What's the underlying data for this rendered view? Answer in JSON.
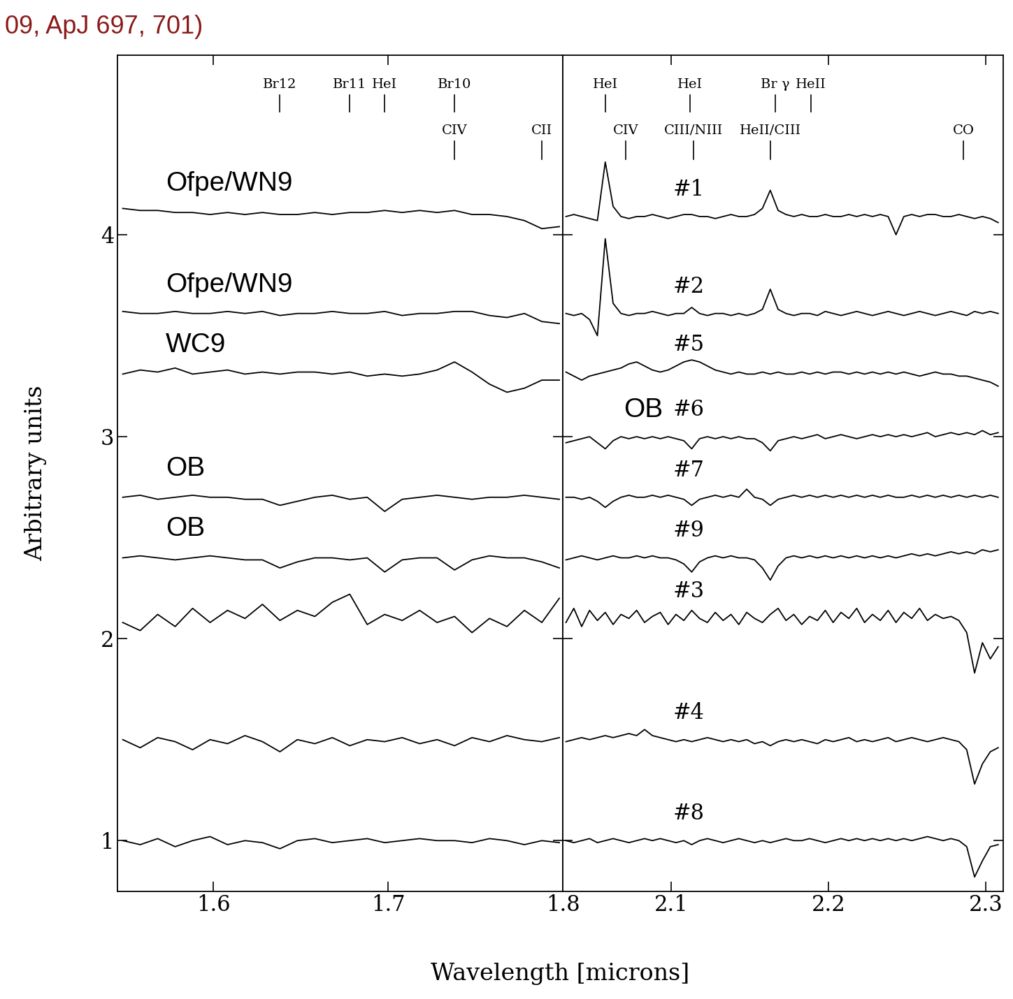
{
  "title": "09, ApJ 697, 701)",
  "xlabel": "Wavelength [microns]",
  "ylabel": "Arbitrary units",
  "chart_data": [
    {
      "type": "line",
      "color": "#000000",
      "xlim": [
        1.545,
        1.8
      ],
      "xticks": [
        1.6,
        1.7,
        1.8
      ],
      "ylim": [
        0.75,
        4.89
      ],
      "yticks": [
        1,
        2,
        3,
        4
      ],
      "upper_lines": [
        {
          "text": "Br12",
          "x": 1.638
        },
        {
          "text": "Br11",
          "x": 1.678
        },
        {
          "text": "HeI",
          "x": 1.698
        },
        {
          "text": "Br10",
          "x": 1.738
        }
      ],
      "lower_lines": [
        {
          "text": "CIV",
          "x": 1.738
        },
        {
          "text": "CII",
          "x": 1.788
        }
      ],
      "x": [
        1.548,
        1.558,
        1.568,
        1.578,
        1.588,
        1.598,
        1.608,
        1.618,
        1.628,
        1.638,
        1.648,
        1.658,
        1.668,
        1.678,
        1.688,
        1.698,
        1.708,
        1.718,
        1.728,
        1.738,
        1.748,
        1.758,
        1.768,
        1.778,
        1.788,
        1.798
      ],
      "series": [
        {
          "name": "Ofpe/WN9",
          "values": [
            4.13,
            4.12,
            4.12,
            4.11,
            4.11,
            4.1,
            4.11,
            4.1,
            4.11,
            4.1,
            4.1,
            4.11,
            4.1,
            4.11,
            4.11,
            4.12,
            4.11,
            4.12,
            4.11,
            4.12,
            4.1,
            4.1,
            4.09,
            4.07,
            4.03,
            4.04
          ]
        },
        {
          "name": "Ofpe/WN9",
          "values": [
            3.62,
            3.61,
            3.61,
            3.62,
            3.61,
            3.61,
            3.62,
            3.61,
            3.62,
            3.6,
            3.61,
            3.61,
            3.62,
            3.61,
            3.61,
            3.62,
            3.6,
            3.61,
            3.61,
            3.62,
            3.62,
            3.6,
            3.59,
            3.61,
            3.57,
            3.56
          ]
        },
        {
          "name": "WC9",
          "values": [
            3.31,
            3.33,
            3.32,
            3.34,
            3.31,
            3.32,
            3.33,
            3.31,
            3.32,
            3.31,
            3.32,
            3.32,
            3.31,
            3.32,
            3.3,
            3.31,
            3.3,
            3.31,
            3.33,
            3.37,
            3.32,
            3.26,
            3.22,
            3.24,
            3.28,
            3.28
          ]
        },
        {
          "name": "OB",
          "values": [
            2.7,
            2.71,
            2.69,
            2.7,
            2.71,
            2.7,
            2.7,
            2.69,
            2.69,
            2.66,
            2.68,
            2.7,
            2.71,
            2.69,
            2.7,
            2.63,
            2.69,
            2.7,
            2.71,
            2.7,
            2.69,
            2.7,
            2.7,
            2.71,
            2.7,
            2.69
          ]
        },
        {
          "name": "OB",
          "values": [
            2.4,
            2.41,
            2.4,
            2.39,
            2.4,
            2.41,
            2.4,
            2.39,
            2.39,
            2.35,
            2.38,
            2.4,
            2.4,
            2.39,
            2.4,
            2.33,
            2.39,
            2.4,
            2.4,
            2.34,
            2.39,
            2.41,
            2.4,
            2.4,
            2.38,
            2.35
          ]
        },
        {
          "values": [
            2.08,
            2.04,
            2.12,
            2.06,
            2.15,
            2.08,
            2.14,
            2.1,
            2.17,
            2.09,
            2.14,
            2.11,
            2.18,
            2.22,
            2.07,
            2.12,
            2.09,
            2.14,
            2.08,
            2.11,
            2.03,
            2.1,
            2.06,
            2.14,
            2.08,
            2.2
          ]
        },
        {
          "values": [
            1.5,
            1.46,
            1.51,
            1.49,
            1.45,
            1.5,
            1.48,
            1.52,
            1.49,
            1.44,
            1.5,
            1.48,
            1.51,
            1.47,
            1.5,
            1.49,
            1.51,
            1.48,
            1.5,
            1.47,
            1.51,
            1.49,
            1.52,
            1.5,
            1.49,
            1.51
          ]
        },
        {
          "values": [
            1.0,
            0.98,
            1.01,
            0.97,
            1.0,
            1.02,
            0.98,
            1.0,
            0.99,
            0.96,
            1.0,
            1.01,
            0.99,
            1.0,
            1.01,
            0.99,
            1.0,
            1.01,
            1.0,
            1.0,
            0.99,
            1.01,
            1.0,
            0.98,
            1.0,
            0.99
          ]
        }
      ]
    },
    {
      "type": "line",
      "color": "#000000",
      "tick_labels": "x",
      "xlim": [
        2.031,
        2.311
      ],
      "xticks": [
        2.1,
        2.2,
        2.3
      ],
      "ylim": [
        0.75,
        4.89
      ],
      "yticks": [
        1,
        2,
        3,
        4
      ],
      "upper_lines": [
        {
          "text": "HeI",
          "x": 2.058
        },
        {
          "text": "HeI",
          "x": 2.112
        },
        {
          "text": "Br γ",
          "x": 2.166
        },
        {
          "text": "HeII",
          "x": 2.189
        }
      ],
      "lower_lines": [
        {
          "text": "CIV",
          "x": 2.071
        },
        {
          "text": "CIII/NIII",
          "x": 2.114
        },
        {
          "text": "HeII/CIII",
          "x": 2.163
        },
        {
          "text": "CO",
          "x": 2.286
        }
      ],
      "annotations": [
        {
          "text": "OB",
          "x": 2.082,
          "y": 3.07
        }
      ],
      "x": [
        2.033,
        2.038,
        2.043,
        2.048,
        2.053,
        2.058,
        2.063,
        2.068,
        2.073,
        2.078,
        2.083,
        2.088,
        2.093,
        2.098,
        2.103,
        2.108,
        2.113,
        2.118,
        2.123,
        2.128,
        2.133,
        2.138,
        2.143,
        2.148,
        2.153,
        2.158,
        2.163,
        2.168,
        2.173,
        2.178,
        2.183,
        2.188,
        2.193,
        2.198,
        2.203,
        2.208,
        2.213,
        2.218,
        2.223,
        2.228,
        2.233,
        2.238,
        2.243,
        2.248,
        2.253,
        2.258,
        2.263,
        2.268,
        2.273,
        2.278,
        2.283,
        2.288,
        2.293,
        2.298,
        2.303,
        2.308
      ],
      "series": [
        {
          "name": "#1",
          "values": [
            4.09,
            4.1,
            4.09,
            4.08,
            4.07,
            4.36,
            4.14,
            4.09,
            4.08,
            4.09,
            4.09,
            4.1,
            4.09,
            4.08,
            4.09,
            4.1,
            4.1,
            4.09,
            4.09,
            4.08,
            4.09,
            4.1,
            4.09,
            4.09,
            4.1,
            4.13,
            4.22,
            4.12,
            4.1,
            4.09,
            4.1,
            4.09,
            4.09,
            4.1,
            4.09,
            4.09,
            4.1,
            4.09,
            4.1,
            4.09,
            4.1,
            4.09,
            4.0,
            4.09,
            4.1,
            4.09,
            4.1,
            4.1,
            4.09,
            4.09,
            4.1,
            4.09,
            4.08,
            4.09,
            4.08,
            4.06
          ]
        },
        {
          "name": "#2",
          "values": [
            3.61,
            3.6,
            3.61,
            3.58,
            3.5,
            3.98,
            3.66,
            3.61,
            3.6,
            3.61,
            3.61,
            3.62,
            3.61,
            3.6,
            3.61,
            3.61,
            3.64,
            3.61,
            3.6,
            3.61,
            3.61,
            3.6,
            3.61,
            3.6,
            3.61,
            3.63,
            3.73,
            3.63,
            3.61,
            3.6,
            3.61,
            3.61,
            3.6,
            3.62,
            3.61,
            3.6,
            3.61,
            3.62,
            3.61,
            3.6,
            3.61,
            3.62,
            3.61,
            3.6,
            3.61,
            3.62,
            3.61,
            3.6,
            3.61,
            3.62,
            3.61,
            3.6,
            3.62,
            3.61,
            3.62,
            3.61
          ]
        },
        {
          "name": "#5",
          "values": [
            3.32,
            3.3,
            3.28,
            3.3,
            3.31,
            3.32,
            3.33,
            3.34,
            3.36,
            3.37,
            3.35,
            3.33,
            3.32,
            3.33,
            3.35,
            3.37,
            3.38,
            3.37,
            3.35,
            3.33,
            3.32,
            3.31,
            3.32,
            3.31,
            3.31,
            3.32,
            3.31,
            3.32,
            3.31,
            3.31,
            3.32,
            3.31,
            3.32,
            3.31,
            3.32,
            3.32,
            3.31,
            3.32,
            3.31,
            3.32,
            3.31,
            3.32,
            3.31,
            3.32,
            3.31,
            3.3,
            3.31,
            3.32,
            3.31,
            3.31,
            3.3,
            3.3,
            3.29,
            3.28,
            3.27,
            3.25
          ]
        },
        {
          "name": "#6",
          "values": [
            2.97,
            2.98,
            2.99,
            3.0,
            2.97,
            2.94,
            2.98,
            3.0,
            2.99,
            3.0,
            2.99,
            3.0,
            2.99,
            3.0,
            2.99,
            2.98,
            2.94,
            2.99,
            3.0,
            2.99,
            3.0,
            2.99,
            3.0,
            2.99,
            2.99,
            2.97,
            2.93,
            2.98,
            2.99,
            3.0,
            2.99,
            3.0,
            3.01,
            2.99,
            3.0,
            3.01,
            3.0,
            2.99,
            3.0,
            3.01,
            3.0,
            3.01,
            3.0,
            3.01,
            3.0,
            3.01,
            3.02,
            3.0,
            3.01,
            3.02,
            3.01,
            3.02,
            3.01,
            3.03,
            3.01,
            3.02
          ]
        },
        {
          "name": "#7",
          "values": [
            2.7,
            2.7,
            2.69,
            2.7,
            2.68,
            2.65,
            2.68,
            2.7,
            2.71,
            2.7,
            2.7,
            2.71,
            2.7,
            2.71,
            2.7,
            2.69,
            2.66,
            2.69,
            2.7,
            2.71,
            2.7,
            2.71,
            2.7,
            2.74,
            2.7,
            2.69,
            2.66,
            2.69,
            2.7,
            2.71,
            2.7,
            2.71,
            2.7,
            2.71,
            2.7,
            2.71,
            2.7,
            2.71,
            2.7,
            2.71,
            2.7,
            2.71,
            2.7,
            2.7,
            2.71,
            2.7,
            2.71,
            2.7,
            2.71,
            2.7,
            2.71,
            2.7,
            2.71,
            2.7,
            2.71,
            2.7
          ]
        },
        {
          "name": "#9",
          "values": [
            2.39,
            2.4,
            2.41,
            2.4,
            2.39,
            2.4,
            2.41,
            2.4,
            2.4,
            2.41,
            2.4,
            2.41,
            2.4,
            2.4,
            2.39,
            2.37,
            2.33,
            2.38,
            2.4,
            2.41,
            2.4,
            2.41,
            2.4,
            2.4,
            2.39,
            2.35,
            2.29,
            2.36,
            2.4,
            2.41,
            2.4,
            2.41,
            2.4,
            2.41,
            2.4,
            2.41,
            2.4,
            2.41,
            2.4,
            2.41,
            2.4,
            2.41,
            2.4,
            2.41,
            2.42,
            2.41,
            2.42,
            2.41,
            2.42,
            2.43,
            2.42,
            2.43,
            2.42,
            2.44,
            2.43,
            2.44
          ]
        },
        {
          "name": "#3",
          "values": [
            2.08,
            2.15,
            2.06,
            2.14,
            2.09,
            2.13,
            2.07,
            2.12,
            2.1,
            2.14,
            2.08,
            2.11,
            2.13,
            2.07,
            2.12,
            2.09,
            2.14,
            2.1,
            2.08,
            2.13,
            2.09,
            2.12,
            2.07,
            2.13,
            2.1,
            2.08,
            2.12,
            2.15,
            2.09,
            2.12,
            2.07,
            2.11,
            2.09,
            2.14,
            2.08,
            2.13,
            2.1,
            2.15,
            2.08,
            2.12,
            2.09,
            2.14,
            2.08,
            2.13,
            2.1,
            2.15,
            2.09,
            2.12,
            2.1,
            2.11,
            2.09,
            2.03,
            1.83,
            1.98,
            1.9,
            1.96
          ]
        },
        {
          "name": "#4",
          "values": [
            1.49,
            1.5,
            1.51,
            1.5,
            1.51,
            1.52,
            1.51,
            1.52,
            1.53,
            1.52,
            1.55,
            1.52,
            1.51,
            1.5,
            1.49,
            1.5,
            1.49,
            1.5,
            1.51,
            1.5,
            1.49,
            1.5,
            1.49,
            1.5,
            1.48,
            1.49,
            1.47,
            1.49,
            1.5,
            1.49,
            1.5,
            1.49,
            1.48,
            1.5,
            1.49,
            1.5,
            1.51,
            1.49,
            1.5,
            1.49,
            1.5,
            1.51,
            1.49,
            1.5,
            1.51,
            1.5,
            1.49,
            1.5,
            1.51,
            1.5,
            1.49,
            1.45,
            1.28,
            1.38,
            1.44,
            1.46
          ]
        },
        {
          "name": "#8",
          "values": [
            1.0,
            0.99,
            1.0,
            1.01,
            0.99,
            1.0,
            1.01,
            1.0,
            0.99,
            1.0,
            1.01,
            1.0,
            1.01,
            1.0,
            0.99,
            1.0,
            0.98,
            1.0,
            1.01,
            1.0,
            0.99,
            1.0,
            1.01,
            1.0,
            0.99,
            1.0,
            0.99,
            1.0,
            1.01,
            1.0,
            1.0,
            1.01,
            1.0,
            0.99,
            1.0,
            1.01,
            1.0,
            1.01,
            1.0,
            1.01,
            1.0,
            1.01,
            1.0,
            1.01,
            1.0,
            1.01,
            1.02,
            1.01,
            1.0,
            1.01,
            1.0,
            0.97,
            0.82,
            0.9,
            0.97,
            0.98
          ]
        }
      ]
    }
  ]
}
